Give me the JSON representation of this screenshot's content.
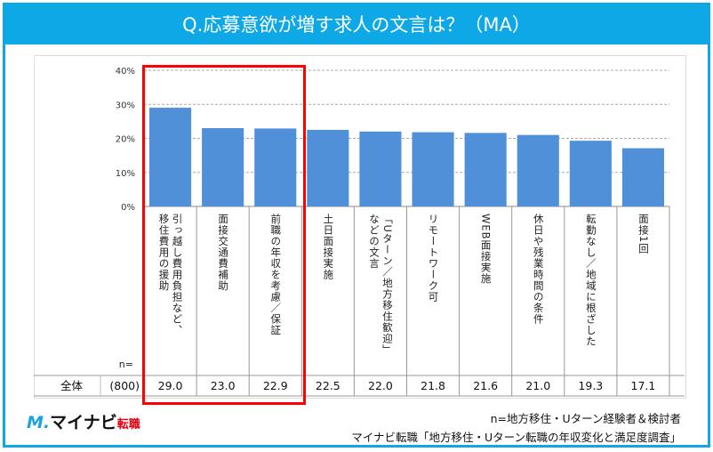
{
  "title": "Q.応募意欲が増す求人の文言は？（MA）",
  "chart_data": {
    "type": "bar",
    "title": "Q.応募意欲が増す求人の文言は？（MA）",
    "categories": [
      "引っ越し費用負担など、移住費用の援助",
      "面接交通費補助",
      "前職の年収を考慮／保証",
      "土日面接実施",
      "「Uターン／地方移住歓迎」などの文言",
      "リモートワーク可",
      "WEB面接実施",
      "休日や残業時間の条件",
      "転勤なし／地域に根ざした",
      "面接1回"
    ],
    "category_lines": [
      [
        "引っ越し費用負担など、",
        "移住費用の援助"
      ],
      [
        "面接交通費補助"
      ],
      [
        "前職の年収を考慮／保証"
      ],
      [
        "土日面接実施"
      ],
      [
        "「Uターン／地方移住歓迎」",
        "などの文言"
      ],
      [
        "リモートワーク可"
      ],
      [
        "WEB面接実施"
      ],
      [
        "休日や残業時間の条件"
      ],
      [
        "転勤なし／地域に根ざした"
      ],
      [
        "面接1回"
      ]
    ],
    "values": [
      29.0,
      23.0,
      22.9,
      22.5,
      22.0,
      21.8,
      21.6,
      21.0,
      19.3,
      17.1
    ],
    "value_labels": [
      "29.0",
      "23.0",
      "22.9",
      "22.5",
      "22.0",
      "21.8",
      "21.6",
      "21.0",
      "19.3",
      "17.1"
    ],
    "ylim": [
      0,
      40
    ],
    "yticks": [
      "0%",
      "10%",
      "20%",
      "30%",
      "40%"
    ],
    "grid": true,
    "bar_color": "#4f90d8",
    "highlight_color": "#ff0000",
    "highlighted": [
      0,
      1,
      2
    ],
    "row_label": "全体",
    "n_label": "n=",
    "n_value": "(800)"
  },
  "logo": {
    "mark": "M.",
    "name": "マイナビ",
    "suffix": "転職"
  },
  "notes": {
    "sample": "n=地方移住・Uターン経験者＆検討者",
    "source": "マイナビ転職「地方移住・Uターン転職の年収変化と満足度調査」"
  }
}
